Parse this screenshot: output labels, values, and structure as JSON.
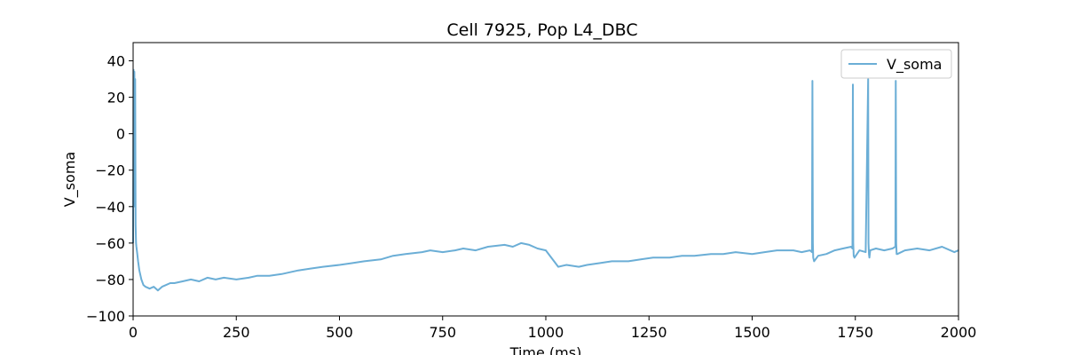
{
  "chart_data": {
    "type": "line",
    "title": "Cell 7925, Pop L4_DBC",
    "xlabel": "Time (ms)",
    "ylabel": "V_soma",
    "xlim": [
      0,
      2000
    ],
    "ylim": [
      -100,
      50
    ],
    "xticks": [
      0,
      250,
      500,
      750,
      1000,
      1250,
      1500,
      1750,
      2000
    ],
    "yticks": [
      -100,
      -80,
      -60,
      -40,
      -20,
      0,
      20,
      40
    ],
    "ytick_labels": [
      "−100",
      "−80",
      "−60",
      "−40",
      "−20",
      "0",
      "20",
      "40"
    ],
    "grid": false,
    "legend_position": "top-right",
    "series": [
      {
        "name": "V_soma",
        "color": "#6baed6",
        "x": [
          0,
          1,
          2,
          3,
          4,
          5,
          6,
          7,
          8,
          9,
          10,
          12,
          15,
          20,
          25,
          30,
          40,
          50,
          60,
          70,
          80,
          90,
          100,
          120,
          140,
          160,
          180,
          200,
          220,
          250,
          280,
          300,
          330,
          360,
          400,
          430,
          460,
          500,
          530,
          560,
          600,
          630,
          660,
          700,
          720,
          750,
          780,
          800,
          830,
          860,
          900,
          920,
          940,
          960,
          980,
          1000,
          1020,
          1030,
          1050,
          1080,
          1100,
          1130,
          1160,
          1200,
          1230,
          1260,
          1300,
          1330,
          1360,
          1400,
          1430,
          1460,
          1500,
          1530,
          1560,
          1600,
          1620,
          1640,
          1645,
          1646,
          1647,
          1648,
          1650,
          1660,
          1680,
          1700,
          1720,
          1740,
          1743,
          1744,
          1745,
          1746,
          1748,
          1760,
          1775,
          1781,
          1782,
          1783,
          1784,
          1786,
          1800,
          1820,
          1840,
          1847,
          1848,
          1849,
          1850,
          1852,
          1870,
          1900,
          1930,
          1960,
          1990,
          2000
        ],
        "y": [
          -60,
          35,
          -20,
          34,
          -40,
          30,
          -50,
          -60,
          -62,
          -64,
          -66,
          -70,
          -75,
          -80,
          -83,
          -84,
          -85,
          -84,
          -86,
          -84,
          -83,
          -82,
          -82,
          -81,
          -80,
          -81,
          -79,
          -80,
          -79,
          -80,
          -79,
          -78,
          -78,
          -77,
          -75,
          -74,
          -73,
          -72,
          -71,
          -70,
          -69,
          -67,
          -66,
          -65,
          -64,
          -65,
          -64,
          -63,
          -64,
          -62,
          -61,
          -62,
          -60,
          -61,
          -63,
          -64,
          -70,
          -73,
          -72,
          -73,
          -72,
          -71,
          -70,
          -70,
          -69,
          -68,
          -68,
          -67,
          -67,
          -66,
          -66,
          -65,
          -66,
          -65,
          -64,
          -64,
          -65,
          -64,
          -65,
          29,
          -60,
          -68,
          -70,
          -67,
          -66,
          -64,
          -63,
          -62,
          -63,
          27,
          -60,
          -67,
          -68,
          -64,
          -65,
          30,
          -60,
          -66,
          -68,
          -64,
          -63,
          -64,
          -63,
          -62,
          29,
          -60,
          -66,
          -66,
          -64,
          -63,
          -64,
          -62,
          -65,
          -64
        ]
      }
    ]
  }
}
